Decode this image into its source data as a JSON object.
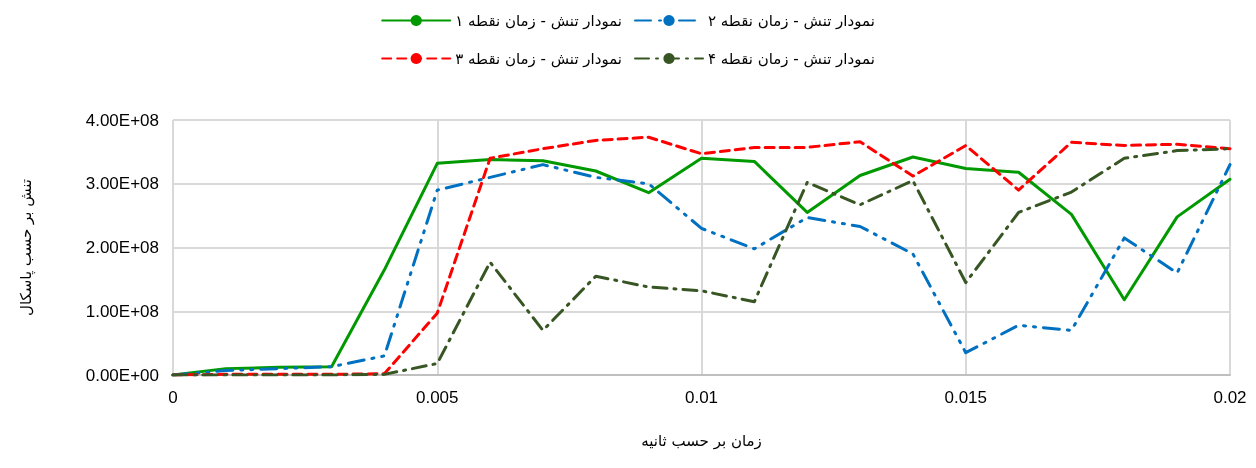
{
  "chart_data": {
    "type": "line",
    "xlabel": "زمان بر حسب ثانیه",
    "ylabel": "تنش بر حسب پاسکال",
    "x": [
      0,
      0.001,
      0.002,
      0.003,
      0.004,
      0.005,
      0.006,
      0.007,
      0.008,
      0.009,
      0.01,
      0.011,
      0.012,
      0.013,
      0.014,
      0.015,
      0.016,
      0.017,
      0.018,
      0.019,
      0.02
    ],
    "series": [
      {
        "name": "نمودار تنش - زمان نقطه ۱",
        "color": "#009900",
        "line_style": "solid",
        "values": [
          0,
          10000000,
          12000000,
          13000000,
          165000000,
          332000000,
          338000000,
          336000000,
          320000000,
          286000000,
          340000000,
          335000000,
          255000000,
          313000000,
          342000000,
          324000000,
          318000000,
          252000000,
          118000000,
          248000000,
          307000000
        ]
      },
      {
        "name": "نمودار تنش - زمان نقطه ۲",
        "color": "#0070c0",
        "line_style": "dashdotdot",
        "values": [
          0,
          7000000,
          10000000,
          13000000,
          30000000,
          290000000,
          310000000,
          330000000,
          310000000,
          300000000,
          230000000,
          198000000,
          247000000,
          233000000,
          190000000,
          35000000,
          78000000,
          70000000,
          215000000,
          160000000,
          330000000
        ]
      },
      {
        "name": "نمودار تنش - زمان نقطه ۳",
        "color": "#ff0000",
        "line_style": "dashed",
        "values": [
          0,
          1000000,
          1000000,
          1000000,
          2000000,
          97000000,
          340000000,
          355000000,
          368000000,
          373000000,
          347000000,
          357000000,
          357000000,
          366000000,
          312000000,
          360000000,
          290000000,
          365000000,
          360000000,
          362000000,
          355000000
        ]
      },
      {
        "name": "نمودار تنش - زمان نقطه ۴",
        "color": "#375623",
        "line_style": "dashdot",
        "values": [
          0,
          0,
          0,
          0,
          1000000,
          18000000,
          177000000,
          70000000,
          155000000,
          138000000,
          132000000,
          115000000,
          302000000,
          267000000,
          305000000,
          145000000,
          255000000,
          287000000,
          340000000,
          352000000,
          355000000
        ]
      }
    ],
    "xlim": [
      0,
      0.02
    ],
    "xticks": [
      0,
      0.005,
      0.01,
      0.015,
      0.02
    ],
    "ylim": [
      0,
      400000000
    ],
    "yticks": [
      {
        "value": 0,
        "label": "0.00E+00"
      },
      {
        "value": 100000000,
        "label": "1.00E+08"
      },
      {
        "value": 200000000,
        "label": "2.00E+08"
      },
      {
        "value": 300000000,
        "label": "3.00E+08"
      },
      {
        "value": 400000000,
        "label": "4.00E+08"
      }
    ],
    "grid": true,
    "legend": "top",
    "marker": "none"
  }
}
